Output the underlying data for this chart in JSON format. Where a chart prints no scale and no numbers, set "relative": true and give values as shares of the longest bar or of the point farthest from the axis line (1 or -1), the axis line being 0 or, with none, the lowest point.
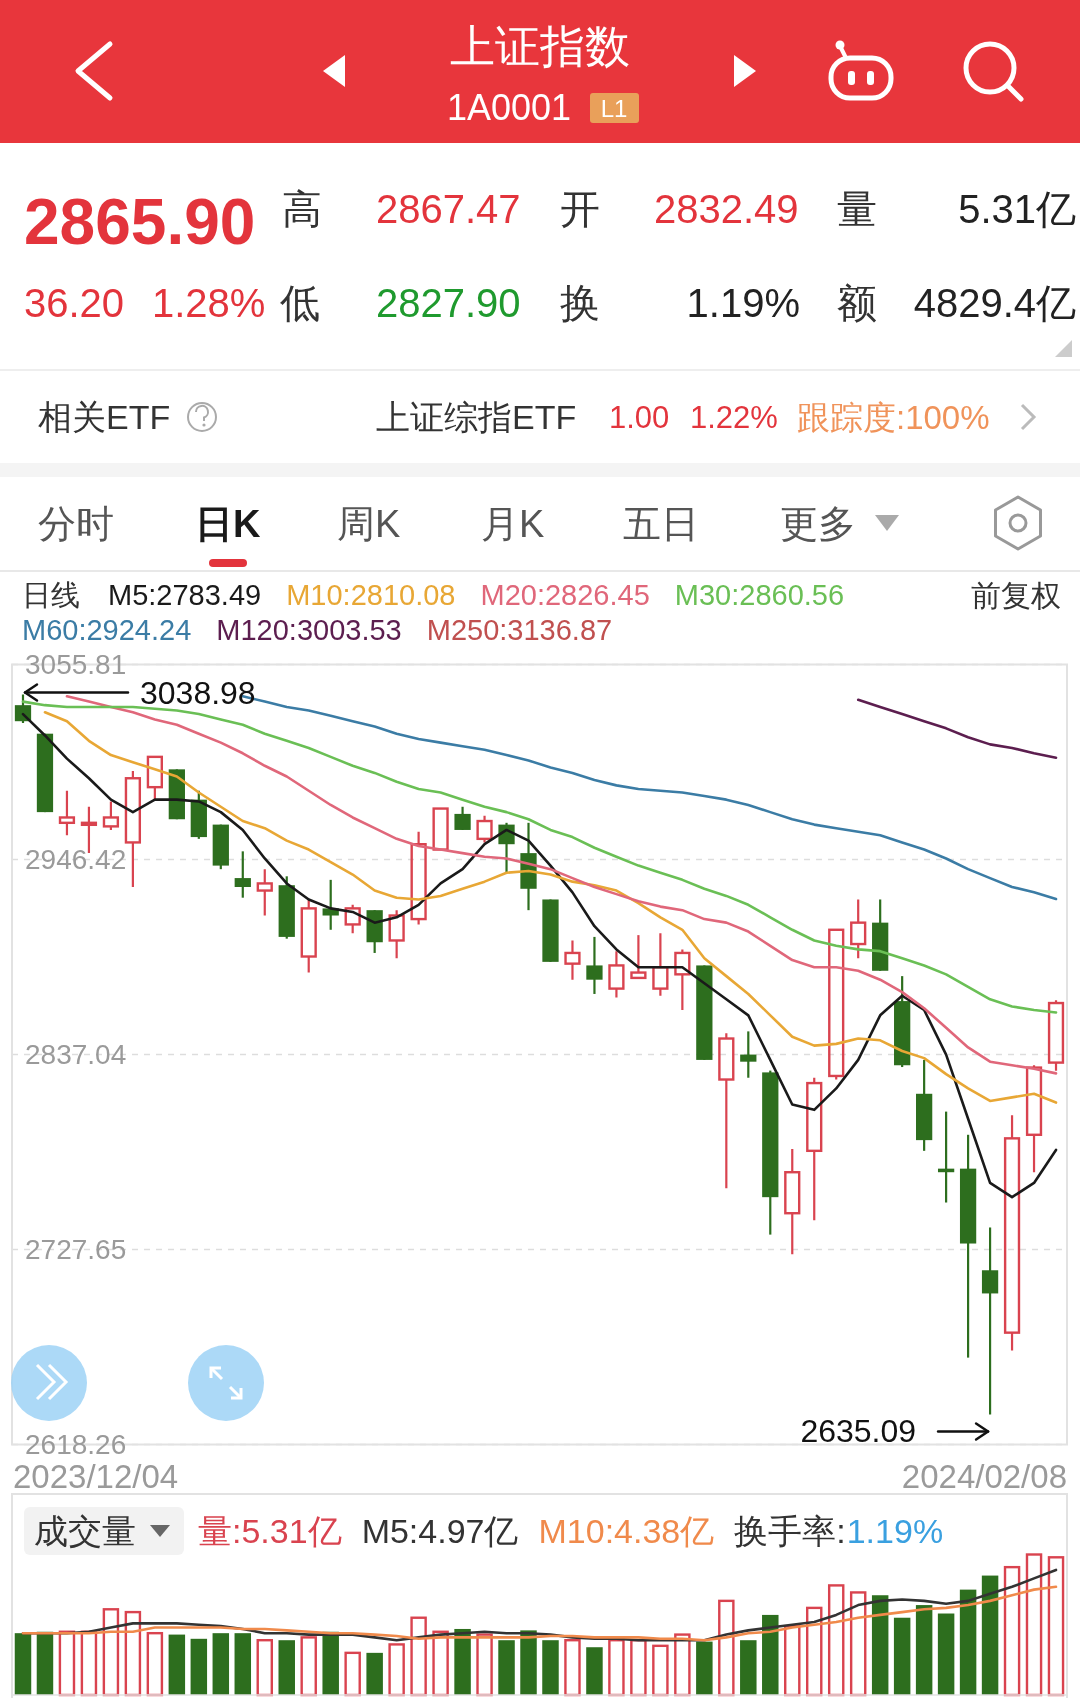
{
  "chart_data": [
    {
      "type": "other",
      "title": "上证指数",
      "subtitle": "1A0001",
      "annotations": [
        "L1",
        "2865.90",
        "高",
        "2867.47",
        "开",
        "2832.49",
        "量",
        "5.31亿",
        "36.20",
        "1.28%",
        "低",
        "2827.90",
        "换",
        "1.19%",
        "额",
        "4829.4亿",
        "相关ETF",
        "上证综指ETF",
        "1.00",
        "1.22%",
        "跟踪度:100%",
        "分时",
        "日K",
        "周K",
        "月K",
        "五日",
        "更多"
      ]
    },
    {
      "type": "candlestick",
      "legend_title": "日线",
      "legend": "top left",
      "grid": "y",
      "categories": [
        null,
        null,
        null,
        null,
        null,
        null,
        null,
        null,
        null,
        null,
        null,
        null,
        null,
        null,
        null,
        null,
        null,
        null,
        null,
        null,
        null,
        null,
        null,
        null,
        null,
        null,
        null,
        null,
        null,
        null,
        null,
        null,
        null,
        null,
        null,
        null,
        null,
        null,
        null,
        null,
        null,
        null,
        null,
        null,
        null,
        null,
        null,
        null
      ],
      "ohlc": [
        [
          3033,
          3038.98,
          3023,
          3024
        ],
        [
          3017,
          3017,
          2973,
          2973
        ],
        [
          2967,
          2985,
          2960,
          2970
        ],
        [
          2966,
          2976,
          2950,
          2967
        ],
        [
          2965,
          2979,
          2963,
          2970
        ],
        [
          2956,
          2996,
          2931,
          2992
        ],
        [
          2987,
          3004,
          2980,
          3004
        ],
        [
          2997,
          2997,
          2969,
          2969
        ],
        [
          2980,
          2985,
          2958,
          2959
        ],
        [
          2966,
          2966,
          2941,
          2943
        ],
        [
          2936,
          2951,
          2925,
          2931
        ],
        [
          2929,
          2941,
          2915,
          2933
        ],
        [
          2932,
          2937,
          2902,
          2903
        ],
        [
          2892,
          2924,
          2883,
          2919
        ],
        [
          2919,
          2935,
          2907,
          2915
        ],
        [
          2910,
          2921,
          2905,
          2919
        ],
        [
          2918,
          2918,
          2894,
          2900
        ],
        [
          2901,
          2918,
          2891,
          2915
        ],
        [
          2913,
          2962,
          2910,
          2955
        ],
        [
          2952,
          2975,
          2952,
          2975
        ],
        [
          2972,
          2976,
          2963,
          2963
        ],
        [
          2958,
          2971,
          2956,
          2968
        ],
        [
          2966,
          2967,
          2939,
          2955
        ],
        [
          2950,
          2967,
          2918,
          2930
        ],
        [
          2924,
          2924,
          2889,
          2889
        ],
        [
          2888,
          2901,
          2879,
          2894
        ],
        [
          2887,
          2903,
          2871,
          2879
        ],
        [
          2874,
          2895,
          2869,
          2887
        ],
        [
          2880,
          2904,
          2880,
          2883
        ],
        [
          2874,
          2905,
          2870,
          2886
        ],
        [
          2882,
          2896,
          2862,
          2894
        ],
        [
          2887,
          2887,
          2834,
          2834
        ],
        [
          2823,
          2849,
          2762,
          2846
        ],
        [
          2837,
          2850,
          2824,
          2833
        ],
        [
          2827,
          2828,
          2736,
          2757
        ],
        [
          2748,
          2784,
          2725,
          2771
        ],
        [
          2783,
          2824,
          2744,
          2821
        ],
        [
          2825,
          2907,
          2823,
          2907
        ],
        [
          2899,
          2924,
          2891,
          2911
        ],
        [
          2911,
          2924,
          2884,
          2884
        ],
        [
          2867,
          2881,
          2830,
          2831
        ],
        [
          2815,
          2834,
          2783,
          2789
        ],
        [
          2773,
          2805,
          2754,
          2771
        ],
        [
          2773,
          2792,
          2667,
          2731
        ],
        [
          2716,
          2740,
          2635.09,
          2703
        ],
        [
          2681,
          2803,
          2671,
          2790
        ],
        [
          2792,
          2831,
          2771,
          2829.7
        ],
        [
          2832.49,
          2867.47,
          2827.9,
          2865.9
        ]
      ],
      "colors": [
        "#2d6e1e",
        "#2d6e1e",
        "#d9434f",
        "#d9434f",
        "#d9434f",
        "#d9434f",
        "#d9434f",
        "#2d6e1e",
        "#2d6e1e",
        "#2d6e1e",
        "#2d6e1e",
        "#d9434f",
        "#2d6e1e",
        "#d9434f",
        "#2d6e1e",
        "#d9434f",
        "#2d6e1e",
        "#d9434f",
        "#d9434f",
        "#d9434f",
        "#2d6e1e",
        "#d9434f",
        "#2d6e1e",
        "#2d6e1e",
        "#2d6e1e",
        "#d9434f",
        "#2d6e1e",
        "#d9434f",
        "#d9434f",
        "#d9434f",
        "#d9434f",
        "#2d6e1e",
        "#d9434f",
        "#2d6e1e",
        "#2d6e1e",
        "#d9434f",
        "#d9434f",
        "#d9434f",
        "#d9434f",
        "#2d6e1e",
        "#2d6e1e",
        "#2d6e1e",
        "#2d6e1e",
        "#2d6e1e",
        "#2d6e1e",
        "#d9434f",
        "#d9434f",
        "#d9434f"
      ],
      "series": [
        {
          "type": "line",
          "name": "M5:2783.49",
          "color": "#1a1a1a",
          "values": [
            3028,
            3016,
            3003,
            2992,
            2980,
            2973,
            2980,
            2980,
            2979,
            2973,
            2963,
            2947,
            2933,
            2924,
            2919,
            2917,
            2911,
            2914,
            2921,
            2933,
            2941,
            2955,
            2963,
            2957,
            2943,
            2928,
            2909,
            2896,
            2886,
            2886,
            2886,
            2877,
            2868,
            2859,
            2834,
            2809,
            2806,
            2818,
            2834,
            2859,
            2870,
            2862,
            2837,
            2801,
            2765,
            2757,
            2765,
            2783.49
          ]
        },
        {
          "type": "line",
          "name": "M10:2810.08",
          "color": "#e8a735",
          "values": [
            null,
            3029,
            3024,
            3013,
            3005,
            3001,
            2997,
            2993,
            2984,
            2976,
            2968,
            2964,
            2957,
            2952,
            2945,
            2938,
            2929,
            2925,
            2924,
            2926,
            2930,
            2934,
            2939,
            2940,
            2938,
            2934,
            2932,
            2929,
            2922,
            2914,
            2907,
            2891,
            2881,
            2871,
            2859,
            2847,
            2842,
            2843,
            2846,
            2845,
            2839,
            2835,
            2826,
            2818,
            2811,
            2813,
            2815,
            2810.08
          ]
        },
        {
          "type": "line",
          "name": "M20:2826.45",
          "color": "#e0677a",
          "values": [
            null,
            null,
            3038,
            3035,
            3032,
            3029,
            3025,
            3022,
            3017,
            3012,
            3006,
            2999,
            2993,
            2985,
            2977,
            2970,
            2964,
            2958,
            2954,
            2952,
            2950,
            2948,
            2947,
            2944,
            2941,
            2936,
            2931,
            2927,
            2923,
            2920,
            2918,
            2913,
            2911,
            2906,
            2898,
            2890,
            2886,
            2886,
            2884,
            2879,
            2872,
            2863,
            2852,
            2841,
            2833,
            2831,
            2829,
            2826.45
          ]
        },
        {
          "type": "line",
          "name": "M30:2860.56",
          "color": "#6abf55",
          "values": [
            3035,
            3033,
            3032,
            3032,
            3032,
            3032,
            3031,
            3030,
            3028,
            3025,
            3022,
            3017,
            3013,
            3009,
            3004,
            2999,
            2995,
            2990,
            2986,
            2984,
            2980,
            2976,
            2973,
            2969,
            2963,
            2959,
            2953,
            2948,
            2943,
            2939,
            2935,
            2930,
            2926,
            2921,
            2914,
            2907,
            2901,
            2898,
            2896,
            2895,
            2891,
            2887,
            2882,
            2875,
            2868,
            2864,
            2862,
            2860.56
          ]
        },
        {
          "type": "line",
          "name": "M60:2924.24",
          "color": "#3b7ca5",
          "values": [
            null,
            null,
            null,
            null,
            null,
            null,
            null,
            null,
            null,
            null,
            3038,
            3035,
            3032,
            3030,
            3027,
            3024,
            3021,
            3017,
            3014,
            3012,
            3010,
            3008,
            3005,
            3002,
            2998,
            2995,
            2991,
            2988,
            2986,
            2985,
            2984,
            2982,
            2980,
            2977,
            2973,
            2969,
            2966,
            2964,
            2962,
            2960,
            2956,
            2952,
            2947,
            2941,
            2936,
            2931,
            2928,
            2924.24
          ]
        },
        {
          "type": "line",
          "name": "M120:3003.53",
          "color": "#5c1e4f",
          "values": [
            null,
            null,
            null,
            null,
            null,
            null,
            null,
            null,
            null,
            null,
            null,
            null,
            null,
            null,
            null,
            null,
            null,
            null,
            null,
            null,
            null,
            null,
            null,
            null,
            null,
            null,
            null,
            null,
            null,
            null,
            null,
            null,
            null,
            null,
            null,
            null,
            null,
            null,
            3036,
            3032,
            3028,
            3024,
            3020,
            3015,
            3011,
            3009,
            3006,
            3003.53
          ]
        },
        {
          "type": "line",
          "name": "M250:3136.87",
          "color": "#c0504f",
          "values": [
            null,
            null,
            null,
            null,
            null,
            null,
            null,
            null,
            null,
            null,
            null,
            null,
            null,
            null,
            null,
            null,
            null,
            null,
            null,
            null,
            null,
            null,
            null,
            null,
            null,
            null,
            null,
            null,
            null,
            null,
            null,
            null,
            null,
            null,
            null,
            null,
            null,
            null,
            null,
            null,
            null,
            null,
            null,
            null,
            null,
            null,
            null,
            null
          ]
        }
      ],
      "ylim": [
        2618.26,
        3055.81
      ],
      "yticks": [
        3055.81,
        2946.42,
        2837.04,
        2727.65,
        2618.26
      ],
      "annotations": [
        "前复权",
        "2023/12/04",
        "2024/02/08",
        "3038.98",
        "2635.09"
      ]
    },
    {
      "type": "bar",
      "relative": true,
      "title": "成交量",
      "legend": "top left",
      "categories": [
        null,
        null,
        null,
        null,
        null,
        null,
        null,
        null,
        null,
        null,
        null,
        null,
        null,
        null,
        null,
        null,
        null,
        null,
        null,
        null,
        null,
        null,
        null,
        null,
        null,
        null,
        null,
        null,
        null,
        null,
        null,
        null,
        null,
        null,
        null,
        null,
        null,
        null,
        null,
        null,
        null,
        null,
        null,
        null,
        null,
        null,
        null,
        null
      ],
      "series": [
        {
          "type": "bar",
          "name": "量:5.31亿",
          "color": "#d9434f",
          "colors": [
            "#2d6e1e",
            "#2d6e1e",
            "#d9434f",
            "#d9434f",
            "#d9434f",
            "#d9434f",
            "#d9434f",
            "#2d6e1e",
            "#2d6e1e",
            "#2d6e1e",
            "#2d6e1e",
            "#d9434f",
            "#2d6e1e",
            "#d9434f",
            "#2d6e1e",
            "#d9434f",
            "#2d6e1e",
            "#d9434f",
            "#d9434f",
            "#d9434f",
            "#2d6e1e",
            "#d9434f",
            "#2d6e1e",
            "#2d6e1e",
            "#2d6e1e",
            "#d9434f",
            "#2d6e1e",
            "#d9434f",
            "#d9434f",
            "#d9434f",
            "#d9434f",
            "#2d6e1e",
            "#d9434f",
            "#2d6e1e",
            "#2d6e1e",
            "#d9434f",
            "#d9434f",
            "#d9434f",
            "#d9434f",
            "#2d6e1e",
            "#2d6e1e",
            "#2d6e1e",
            "#2d6e1e",
            "#2d6e1e",
            "#2d6e1e",
            "#d9434f",
            "#d9434f",
            "#d9434f"
          ],
          "values": [
            0.44,
            0.45,
            0.45,
            0.45,
            0.61,
            0.59,
            0.44,
            0.43,
            0.4,
            0.44,
            0.44,
            0.39,
            0.39,
            0.41,
            0.45,
            0.3,
            0.3,
            0.36,
            0.55,
            0.45,
            0.47,
            0.43,
            0.39,
            0.46,
            0.39,
            0.39,
            0.34,
            0.39,
            0.39,
            0.35,
            0.43,
            0.38,
            0.67,
            0.39,
            0.57,
            0.49,
            0.62,
            0.78,
            0.73,
            0.71,
            0.55,
            0.64,
            0.58,
            0.75,
            0.85,
            0.91,
            1,
            0.98
          ]
        },
        {
          "type": "line",
          "name": "M5:4.97亿",
          "color": "#333333",
          "values": [
            0.44,
            0.44,
            0.44,
            0.45,
            0.48,
            0.51,
            0.51,
            0.51,
            0.5,
            0.49,
            0.47,
            0.44,
            0.44,
            0.43,
            0.43,
            0.43,
            0.41,
            0.39,
            0.41,
            0.43,
            0.44,
            0.45,
            0.44,
            0.44,
            0.43,
            0.41,
            0.4,
            0.4,
            0.39,
            0.39,
            0.39,
            0.39,
            0.43,
            0.46,
            0.48,
            0.5,
            0.52,
            0.57,
            0.64,
            0.67,
            0.68,
            0.67,
            0.65,
            0.67,
            0.72,
            0.77,
            0.83,
            0.89
          ]
        },
        {
          "type": "line",
          "name": "M10:4.38亿",
          "color": "#f08a4b",
          "values": [
            0.44,
            0.44,
            0.44,
            0.44,
            0.45,
            0.45,
            0.48,
            0.48,
            0.48,
            0.48,
            0.47,
            0.47,
            0.46,
            0.45,
            0.44,
            0.44,
            0.43,
            0.42,
            0.4,
            0.41,
            0.41,
            0.41,
            0.41,
            0.41,
            0.42,
            0.42,
            0.41,
            0.41,
            0.41,
            0.4,
            0.4,
            0.39,
            0.41,
            0.44,
            0.45,
            0.48,
            0.5,
            0.52,
            0.55,
            0.57,
            0.59,
            0.61,
            0.62,
            0.64,
            0.67,
            0.71,
            0.75,
            0.77
          ]
        }
      ],
      "annotations": [
        "换手率:",
        "1.19%"
      ]
    }
  ]
}
